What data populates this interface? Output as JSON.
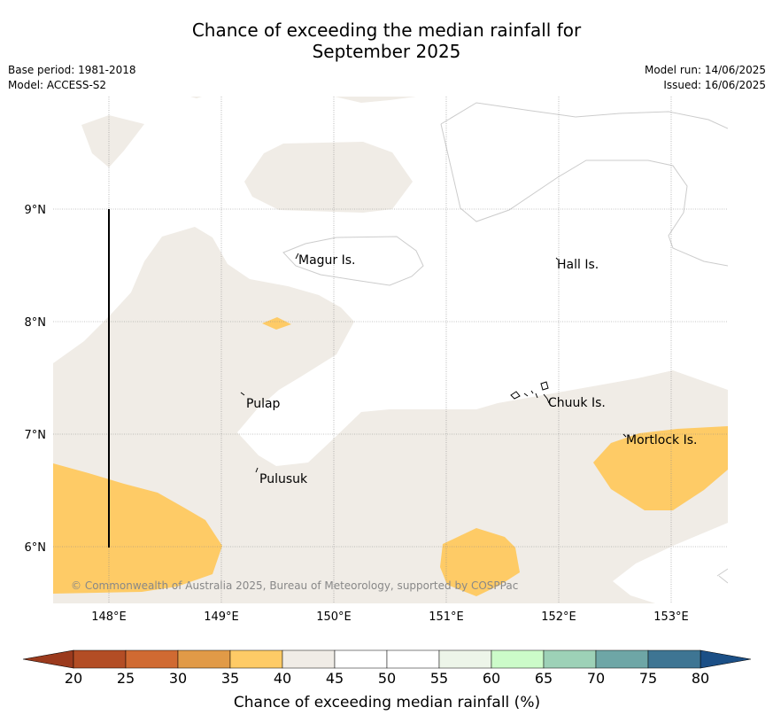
{
  "header": {
    "title_line1": "Chance of exceeding the median rainfall for",
    "title_line2": "September 2025",
    "base_period": "Base period: 1981-2018",
    "model": "Model: ACCESS-S2",
    "model_run": "Model run: 14/06/2025",
    "issued": "Issued: 16/06/2025"
  },
  "map": {
    "lon_labels": [
      "148°E",
      "149°E",
      "150°E",
      "151°E",
      "152°E",
      "153°E"
    ],
    "lat_labels": [
      "9°N",
      "8°N",
      "7°N",
      "6°N"
    ],
    "places": {
      "magur": "Magur Is.",
      "hall": "Hall Is.",
      "pulap": "Pulap",
      "chuuk": "Chuuk Is.",
      "mortlock": "Mortlock Is.",
      "pulusuk": "Pulusuk"
    },
    "copyright": "© Commonwealth of Australia 2025, Bureau of Meteorology, supported by COSPPac",
    "colors": {
      "band_30_35": "#e19a47",
      "band_35_40": "#fecb66",
      "band_40_45": "#f0ece6",
      "band_45_55": "#ffffff"
    }
  },
  "colorbar": {
    "title": "Chance of exceeding median rainfall (%)",
    "ticks": [
      "20",
      "25",
      "30",
      "35",
      "40",
      "45",
      "50",
      "55",
      "60",
      "65",
      "70",
      "75",
      "80"
    ],
    "colors": [
      "#b34d25",
      "#d06a32",
      "#e19a47",
      "#fecb66",
      "#f0ece6",
      "#ffffff",
      "#ffffff",
      "#edf5e9",
      "#ccfbc9",
      "#9dd1b7",
      "#6ea6a6",
      "#3e7593"
    ],
    "under_color": "#9b3a1d",
    "over_color": "#1b4f86"
  }
}
